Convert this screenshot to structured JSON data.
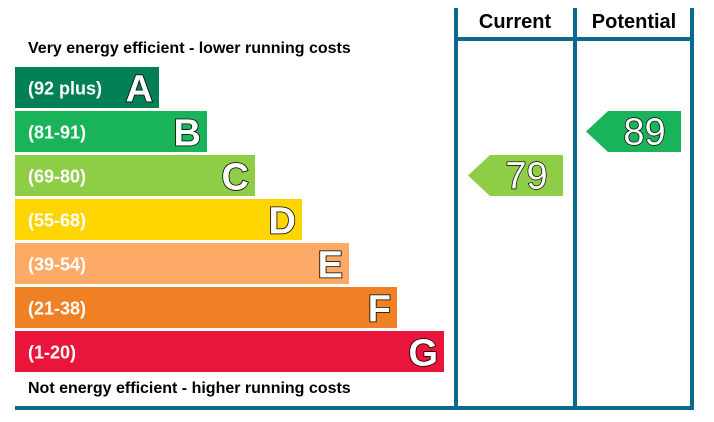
{
  "chart_data": {
    "type": "bar",
    "headers": {
      "current": "Current",
      "potential": "Potential"
    },
    "top_caption": "Very energy efficient - lower running costs",
    "bottom_caption": "Not energy efficient - higher running costs",
    "bands": [
      {
        "letter": "A",
        "range": "(92 plus)",
        "color": "#008054"
      },
      {
        "letter": "B",
        "range": "(81-91)",
        "color": "#19b459"
      },
      {
        "letter": "C",
        "range": "(69-80)",
        "color": "#8dce46"
      },
      {
        "letter": "D",
        "range": "(55-68)",
        "color": "#ffd500"
      },
      {
        "letter": "E",
        "range": "(39-54)",
        "color": "#fcaa65"
      },
      {
        "letter": "F",
        "range": "(21-38)",
        "color": "#ef8023"
      },
      {
        "letter": "G",
        "range": "(1-20)",
        "color": "#e9153b"
      }
    ],
    "current": {
      "value": "79",
      "band": "C",
      "color": "#8dce46"
    },
    "potential": {
      "value": "89",
      "band": "B",
      "color": "#19b459"
    },
    "frame_color": "#0a6a8e"
  }
}
